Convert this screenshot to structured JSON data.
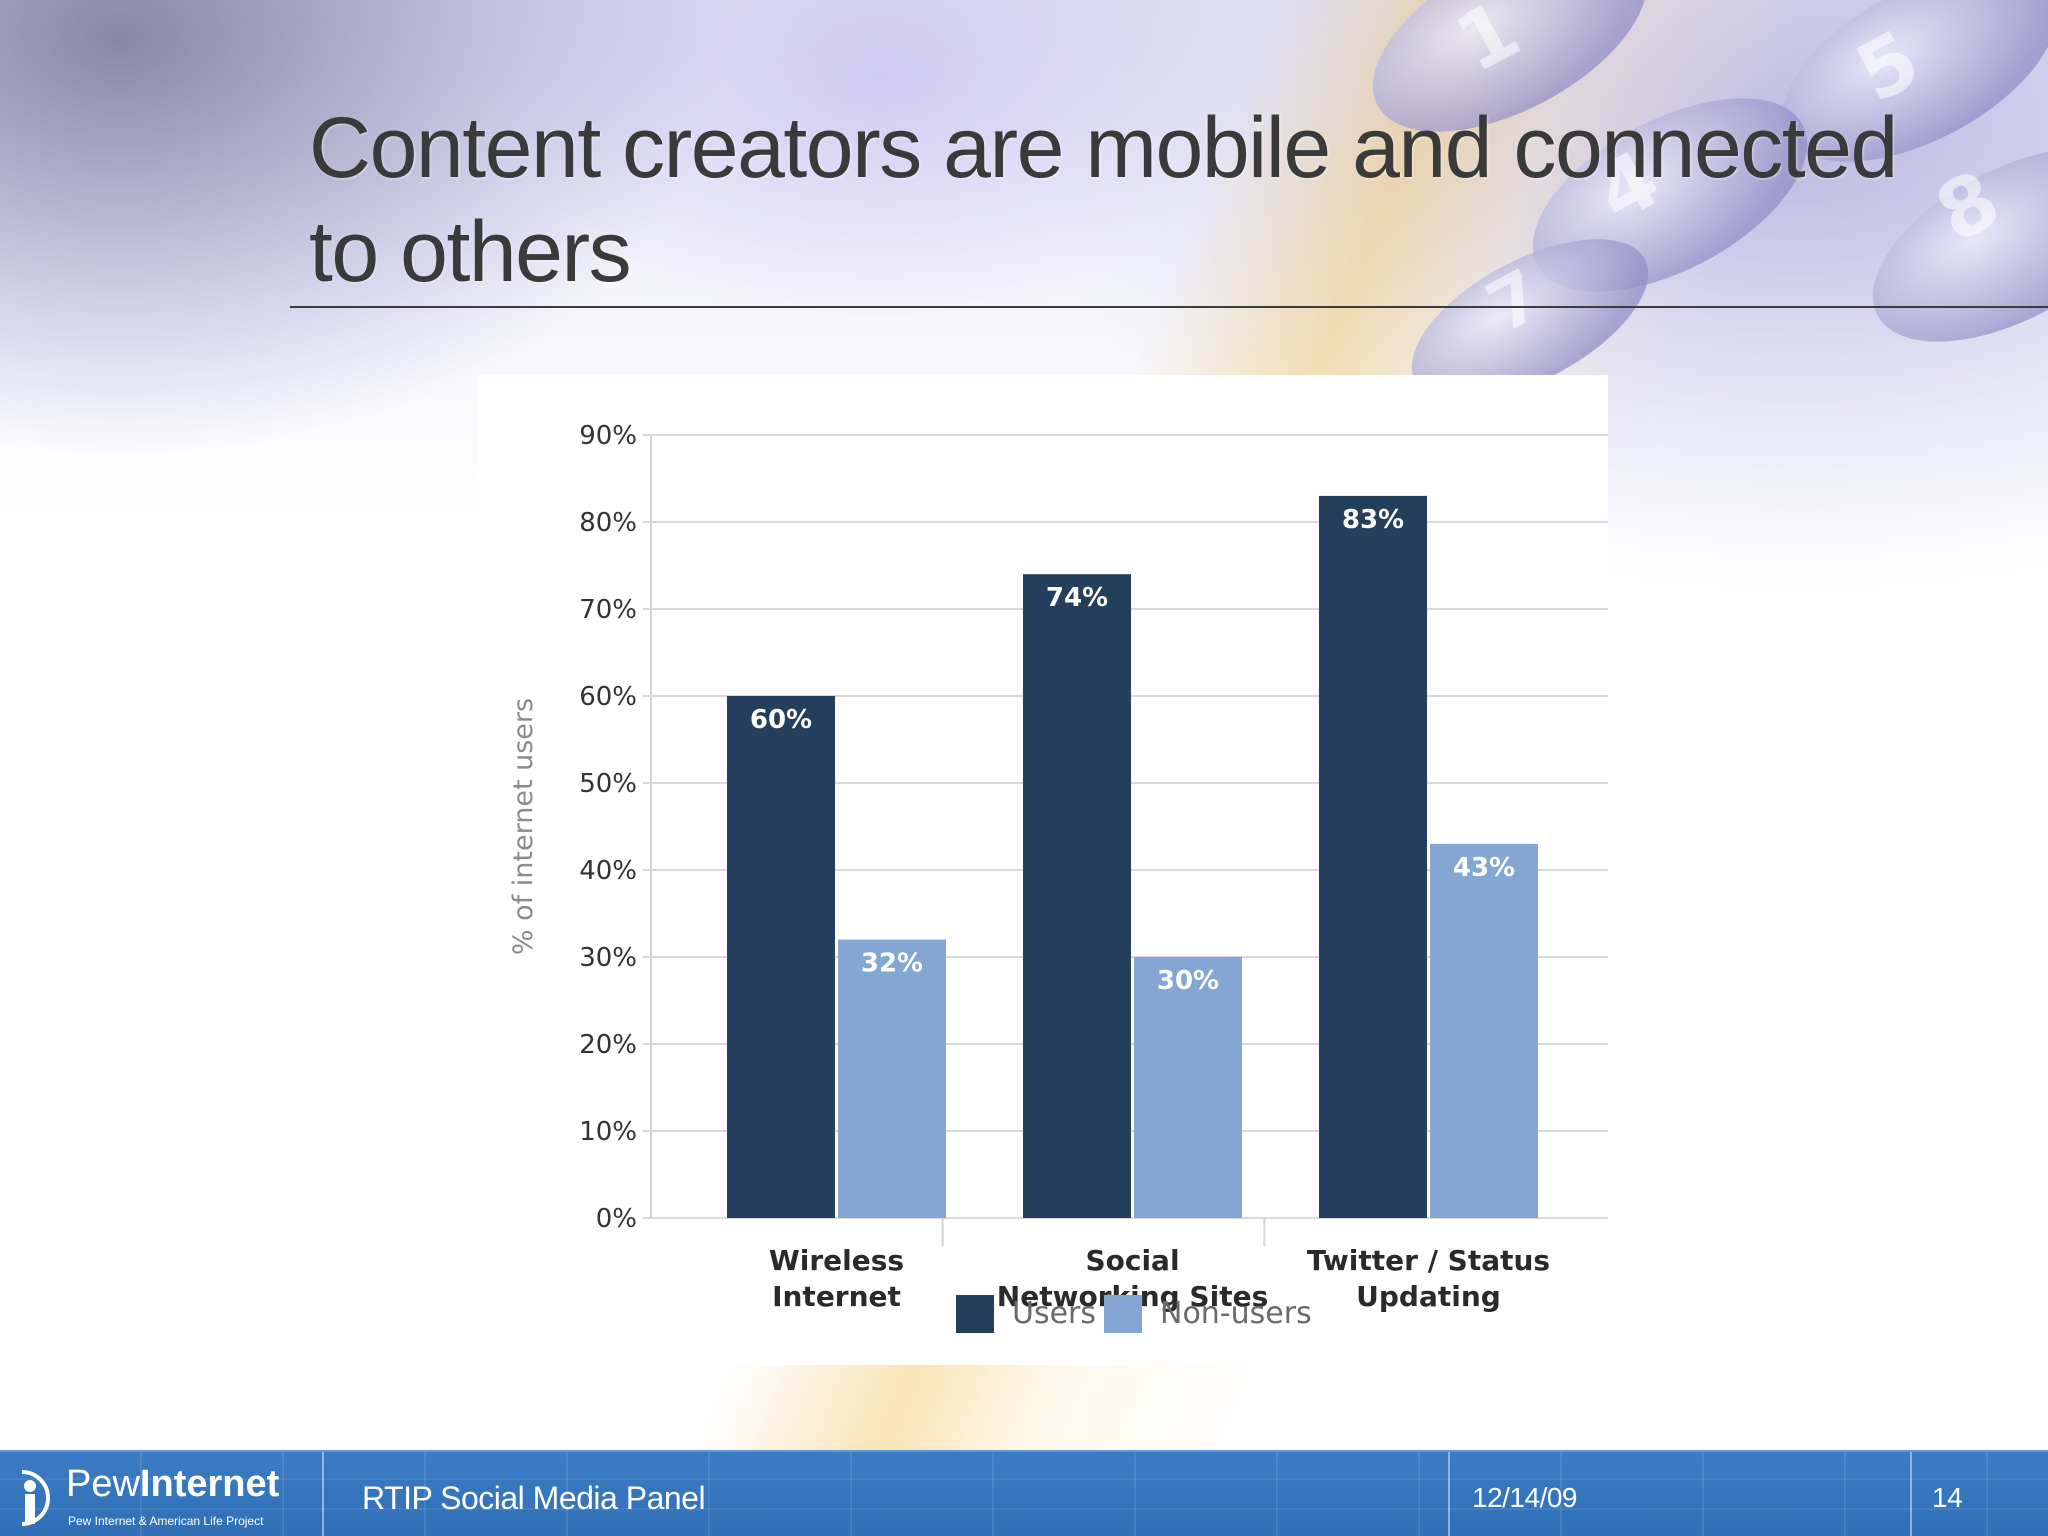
{
  "slide": {
    "title": "Content creators are mobile and connected to others"
  },
  "chart_data": {
    "type": "bar",
    "categories": [
      [
        "Wireless",
        "Internet"
      ],
      [
        "Social",
        "Networking Sites"
      ],
      [
        "Twitter / Status",
        "Updating"
      ]
    ],
    "series": [
      {
        "name": "Users",
        "values": [
          60,
          74,
          83
        ],
        "color": "#243f5c",
        "data_labels": [
          "60%",
          "74%",
          "83%"
        ]
      },
      {
        "name": "Non-users",
        "values": [
          32,
          30,
          43
        ],
        "color": "#84a6d3",
        "data_labels": [
          "32%",
          "30%",
          "43%"
        ]
      }
    ],
    "title": "",
    "xlabel": "",
    "ylabel": "% of internet users",
    "ylim": [
      0,
      90
    ],
    "yticks": [
      "0%",
      "10%",
      "20%",
      "30%",
      "40%",
      "50%",
      "60%",
      "70%",
      "80%",
      "90%"
    ],
    "ytick_values": [
      0,
      10,
      20,
      30,
      40,
      50,
      60,
      70,
      80,
      90
    ],
    "grid": true,
    "legend": "bottom-center"
  },
  "footer": {
    "logo_word1": "Pew",
    "logo_word2": "Internet",
    "logo_sub": "Pew Internet & American Life Project",
    "presentation": "RTIP Social Media Panel",
    "date": "12/14/09",
    "page_number": "14",
    "color": "#3375bd"
  }
}
